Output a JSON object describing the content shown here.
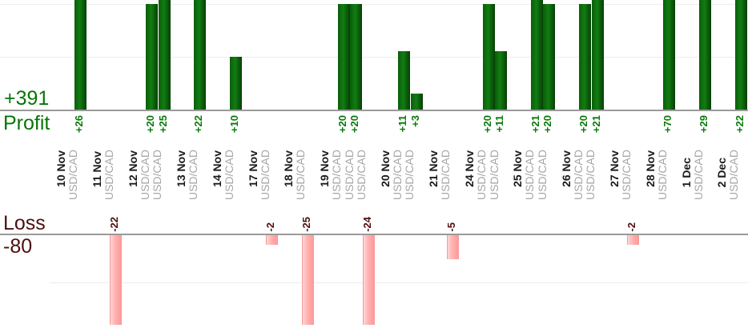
{
  "chart": {
    "profit_total": "+391",
    "profit_axis_label": "Profit",
    "loss_axis_label": "Loss",
    "loss_total": "-80",
    "colors": {
      "profit_bar": "#0c6e0c",
      "profit_text": "#077607",
      "loss_bar": "#ffb2b2",
      "loss_text": "#4d0f0f",
      "date_text": "#1a1a1a",
      "instrument_text": "#a6a6a6",
      "axis_line": "#9a9a9a",
      "gridline": "#ededed"
    }
  },
  "chart_data": {
    "type": "bar",
    "title": "",
    "description": "Per-trade profit (top panel) and loss (bottom panel) grouped by trading day; panels are cropped so tall bars are clipped at the panel edge",
    "legend": "none",
    "grid": "on",
    "profit_panel": {
      "axis_label": "Profit",
      "total": 391,
      "gridline_values": [
        10,
        20
      ],
      "zero_label": "+391"
    },
    "loss_panel": {
      "axis_label": "Loss",
      "total": -80,
      "gridline_values": [
        -10
      ],
      "zero_label": "-80"
    },
    "groups": [
      {
        "date": "10 Nov",
        "trades": [
          {
            "instrument": "USD/CAD",
            "value": 26
          }
        ]
      },
      {
        "date": "11 Nov",
        "trades": [
          {
            "instrument": "USD/CAD",
            "value": -22
          }
        ]
      },
      {
        "date": "12 Nov",
        "trades": [
          {
            "instrument": "USD/CAD",
            "value": 20
          },
          {
            "instrument": "USD/CAD",
            "value": 25
          }
        ]
      },
      {
        "date": "13 Nov",
        "trades": [
          {
            "instrument": "USD/CAD",
            "value": 22
          }
        ]
      },
      {
        "date": "14 Nov",
        "trades": [
          {
            "instrument": "USD/CAD",
            "value": 10
          }
        ]
      },
      {
        "date": "17 Nov",
        "trades": [
          {
            "instrument": "USD/CAD",
            "value": -2
          }
        ]
      },
      {
        "date": "18 Nov",
        "trades": [
          {
            "instrument": "USD/CAD",
            "value": -25
          }
        ]
      },
      {
        "date": "19 Nov",
        "trades": [
          {
            "instrument": "USD/CAD",
            "value": 20
          },
          {
            "instrument": "USD/CAD",
            "value": 20
          },
          {
            "instrument": "USD/CAD",
            "value": -24
          }
        ]
      },
      {
        "date": "20 Nov",
        "trades": [
          {
            "instrument": "USD/CAD",
            "value": 11
          },
          {
            "instrument": "USD/CAD",
            "value": 3
          }
        ]
      },
      {
        "date": "21 Nov",
        "trades": [
          {
            "instrument": "USD/CAD",
            "value": -5
          }
        ]
      },
      {
        "date": "24 Nov",
        "trades": [
          {
            "instrument": "USD/CAD",
            "value": 20
          },
          {
            "instrument": "USD/CAD",
            "value": 11
          }
        ]
      },
      {
        "date": "25 Nov",
        "trades": [
          {
            "instrument": "USD/CAD",
            "value": 21
          },
          {
            "instrument": "USD/CAD",
            "value": 20
          }
        ]
      },
      {
        "date": "26 Nov",
        "trades": [
          {
            "instrument": "USD/CAD",
            "value": 20
          },
          {
            "instrument": "USD/CAD",
            "value": 21
          }
        ]
      },
      {
        "date": "27 Nov",
        "trades": [
          {
            "instrument": "USD/CAD",
            "value": -2
          }
        ]
      },
      {
        "date": "28 Nov",
        "trades": [
          {
            "instrument": "USD/CAD",
            "value": 70
          }
        ]
      },
      {
        "date": "1 Dec",
        "trades": [
          {
            "instrument": "USD/CAD",
            "value": 29
          }
        ]
      },
      {
        "date": "2 Dec",
        "trades": [
          {
            "instrument": "USD/CAD",
            "value": 22
          }
        ]
      }
    ]
  }
}
